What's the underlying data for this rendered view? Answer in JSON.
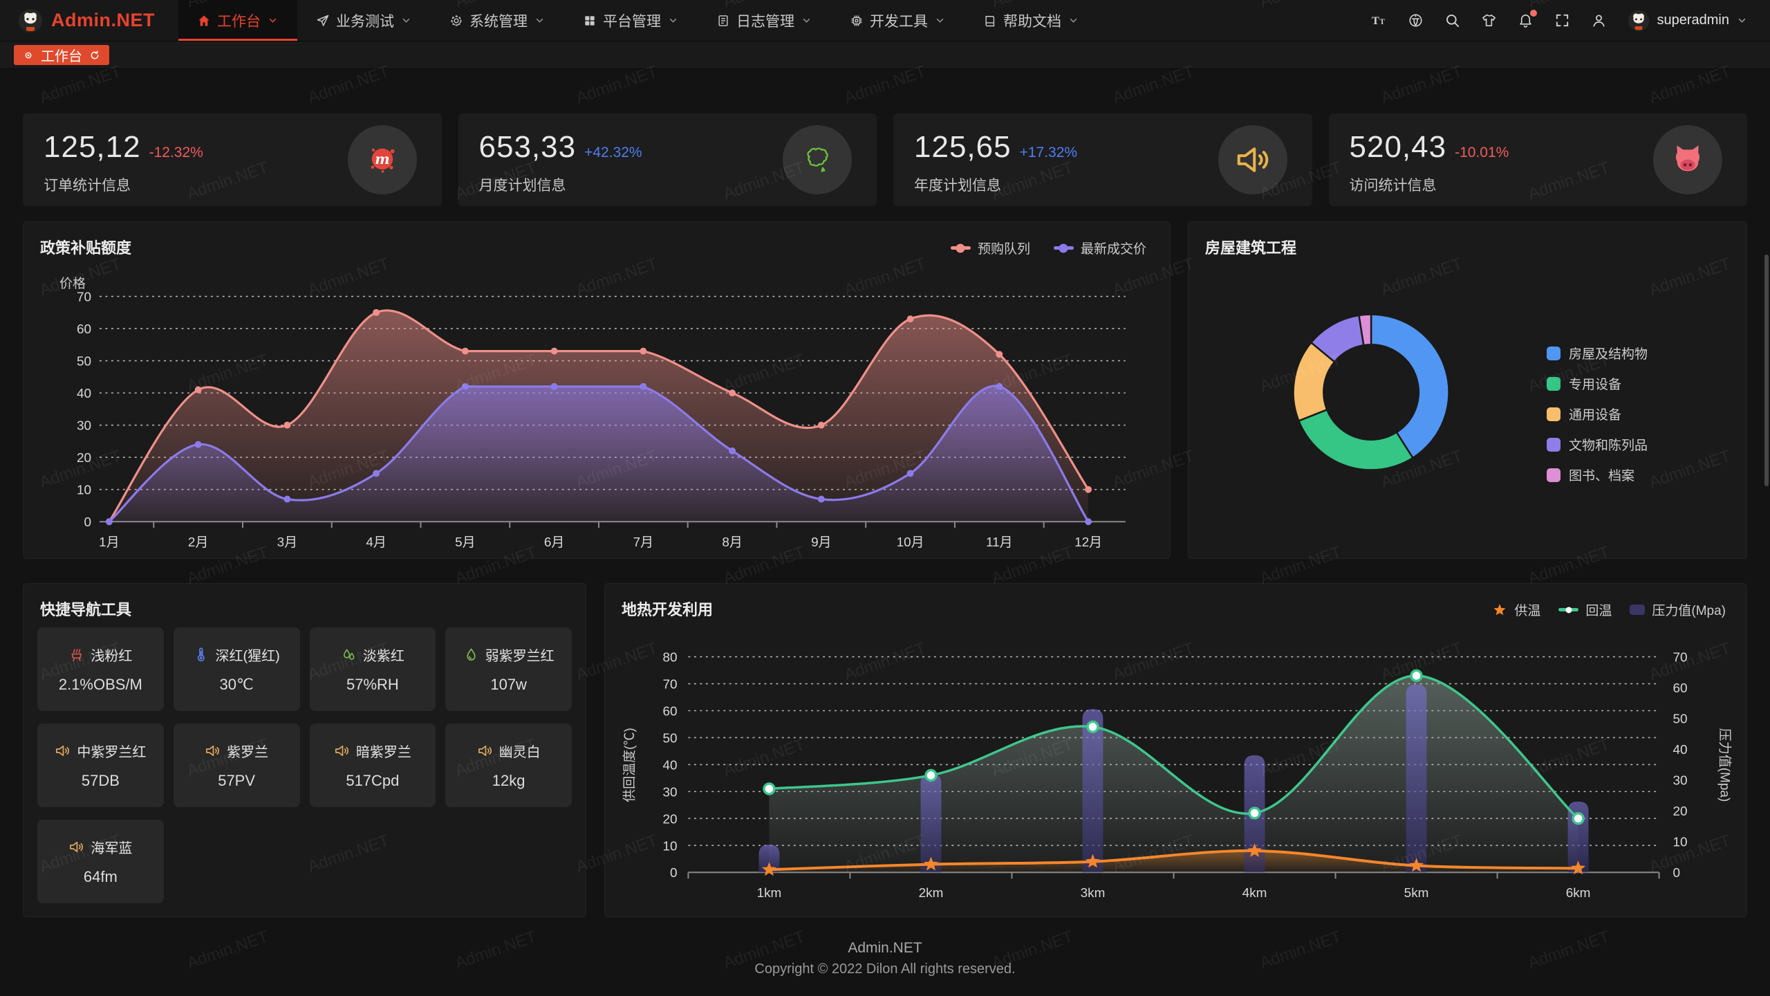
{
  "header": {
    "logo_text": "Admin.NET",
    "menu": [
      {
        "label": "工作台",
        "icon": "home-icon",
        "active": true
      },
      {
        "label": "业务测试",
        "icon": "send-icon",
        "active": false
      },
      {
        "label": "系统管理",
        "icon": "gear-icon",
        "active": false
      },
      {
        "label": "平台管理",
        "icon": "grid-icon",
        "active": false
      },
      {
        "label": "日志管理",
        "icon": "file-icon",
        "active": false
      },
      {
        "label": "开发工具",
        "icon": "chip-icon",
        "active": false
      },
      {
        "label": "帮助文档",
        "icon": "book-icon",
        "active": false
      }
    ],
    "tools": [
      "font-size",
      "language",
      "search",
      "theme",
      "notification",
      "fullscreen",
      "profile"
    ],
    "username": "superadmin"
  },
  "tabbar": {
    "active_tab": "工作台"
  },
  "stat_cards": [
    {
      "value": "125,12",
      "delta": "-12.32%",
      "delta_color": "#F25B5B",
      "label": "订单统计信息",
      "icon": "meetup-splash-icon"
    },
    {
      "value": "653,33",
      "delta": "+42.32%",
      "delta_color": "#4E7EF2",
      "label": "月度计划信息",
      "icon": "china-map-icon"
    },
    {
      "value": "125,65",
      "delta": "+17.32%",
      "delta_color": "#4E7EF2",
      "label": "年度计划信息",
      "icon": "speaker-icon"
    },
    {
      "value": "520,43",
      "delta": "-10.01%",
      "delta_color": "#F25B5B",
      "label": "访问统计信息",
      "icon": "cat-icon"
    }
  ],
  "chart_data": [
    {
      "type": "area",
      "title": "政策补贴额度",
      "ylabel": "价格",
      "ylim": [
        0,
        70
      ],
      "grid": "dashed",
      "legend_position": "top-right",
      "categories": [
        "1月",
        "2月",
        "3月",
        "4月",
        "5月",
        "6月",
        "7月",
        "8月",
        "9月",
        "10月",
        "11月",
        "12月"
      ],
      "series": [
        {
          "name": "预购队列",
          "color": "#F0908A",
          "values": [
            0,
            41,
            30,
            65,
            53,
            53,
            53,
            40,
            30,
            63,
            52,
            10
          ]
        },
        {
          "name": "最新成交价",
          "color": "#8B7BEA",
          "values": [
            0,
            24,
            7,
            15,
            42,
            42,
            42,
            22,
            7,
            15,
            42,
            0
          ]
        }
      ]
    },
    {
      "type": "pie",
      "title": "房屋建筑工程",
      "donut": true,
      "legend_position": "right",
      "labels": [
        "房屋及结构物",
        "专用设备",
        "通用设备",
        "文物和陈列品",
        "图书、档案"
      ],
      "values": [
        41,
        28,
        17,
        11.5,
        2.5
      ],
      "colors": [
        "#5196F2",
        "#35C584",
        "#F9BE6B",
        "#8F7EE8",
        "#DE8FD8"
      ]
    },
    {
      "type": "line",
      "title": "地热开发利用",
      "ylabel_left": "供回温度(℃)",
      "ylabel_right": "压力值(Mpa)",
      "ylim_left": [
        0,
        80
      ],
      "ylim_right": [
        0,
        70
      ],
      "grid": "dashed",
      "legend_position": "top-right",
      "categories": [
        "1km",
        "2km",
        "3km",
        "4km",
        "5km",
        "6km"
      ],
      "series": [
        {
          "name": "供温",
          "kind": "line",
          "axis": "left",
          "marker": "star",
          "color": "#F5862B",
          "values": [
            1,
            3,
            4,
            8,
            2.5,
            1.5
          ]
        },
        {
          "name": "回温",
          "kind": "line",
          "axis": "left",
          "marker": "circle",
          "color": "#3EC78C",
          "values": [
            31,
            36,
            54,
            22,
            73,
            20
          ]
        },
        {
          "name": "压力值(Mpa)",
          "kind": "bar",
          "axis": "right",
          "color": "#3B3566",
          "values": [
            9,
            32,
            53,
            38,
            61,
            23
          ]
        }
      ]
    }
  ],
  "quick_nav": {
    "title": "快捷导航工具",
    "items": [
      {
        "label": "浅粉红",
        "value": "2.1%OBS/M",
        "icon": "brazier-icon",
        "icon_color": "#E25650"
      },
      {
        "label": "深红(猩红)",
        "value": "30℃",
        "icon": "thermometer-icon",
        "icon_color": "#5B80F0"
      },
      {
        "label": "淡紫红",
        "value": "57%RH",
        "icon": "humidity-icon",
        "icon_color": "#7EC050"
      },
      {
        "label": "弱紫罗兰红",
        "value": "107w",
        "icon": "water-drop-icon",
        "icon_color": "#7EC050"
      },
      {
        "label": "中紫罗兰红",
        "value": "57DB",
        "icon": "speaker-icon",
        "icon_color": "#E0A75E"
      },
      {
        "label": "紫罗兰",
        "value": "57PV",
        "icon": "speaker-icon",
        "icon_color": "#E0A75E"
      },
      {
        "label": "暗紫罗兰",
        "value": "517Cpd",
        "icon": "speaker-icon",
        "icon_color": "#E0A75E"
      },
      {
        "label": "幽灵白",
        "value": "12kg",
        "icon": "speaker-icon",
        "icon_color": "#E0A75E"
      },
      {
        "label": "海军蓝",
        "value": "64fm",
        "icon": "speaker-icon",
        "icon_color": "#E0A75E"
      }
    ]
  },
  "footer": {
    "line1": "Admin.NET",
    "line2": "Copyright © 2022 Dilon All rights reserved."
  },
  "watermark": {
    "text": "Admin.NET"
  }
}
